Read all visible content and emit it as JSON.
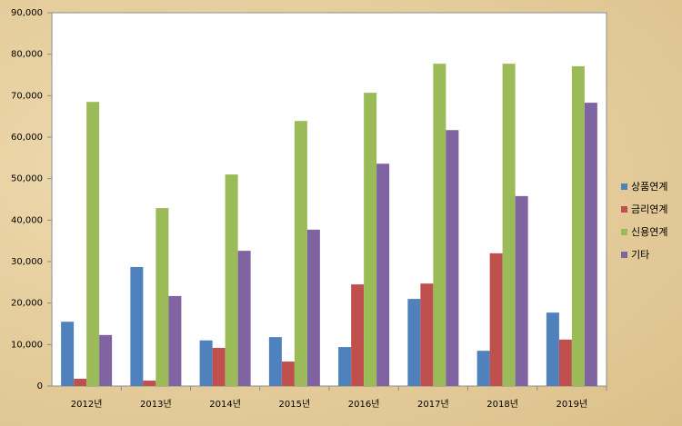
{
  "chart_data": {
    "type": "bar",
    "categories": [
      "2012년",
      "2013년",
      "2014년",
      "2015년",
      "2016년",
      "2017년",
      "2018년",
      "2019년"
    ],
    "series": [
      {
        "name": "상품연계",
        "color": "#4f81bd",
        "values": [
          15500,
          28700,
          11000,
          11800,
          9400,
          21000,
          8500,
          17700
        ]
      },
      {
        "name": "금리연계",
        "color": "#c0504d",
        "values": [
          1750,
          1300,
          9200,
          5900,
          24500,
          24700,
          32000,
          11200
        ]
      },
      {
        "name": "신용연계",
        "color": "#9bbb59",
        "values": [
          68500,
          42900,
          51000,
          63900,
          70700,
          77700,
          77700,
          77100
        ]
      },
      {
        "name": "기타",
        "color": "#8064a2",
        "values": [
          12300,
          21700,
          32600,
          37700,
          53600,
          61700,
          45800,
          68300
        ]
      }
    ],
    "ylim": [
      0,
      90000
    ],
    "yticks": [
      0,
      {
        "value": 10000,
        "label": "10,000"
      },
      {
        "value": 20000,
        "label": "20,000"
      },
      {
        "value": 30000,
        "label": "30,000"
      },
      {
        "value": 40000,
        "label": "40,000"
      },
      {
        "value": 50000,
        "label": "50,000"
      },
      {
        "value": 60000,
        "label": "60,000"
      },
      {
        "value": 70000,
        "label": "70,000"
      },
      {
        "value": 80000,
        "label": "80,000"
      },
      {
        "value": 90000,
        "label": "90,000"
      }
    ],
    "grid": false,
    "legend": "right"
  }
}
